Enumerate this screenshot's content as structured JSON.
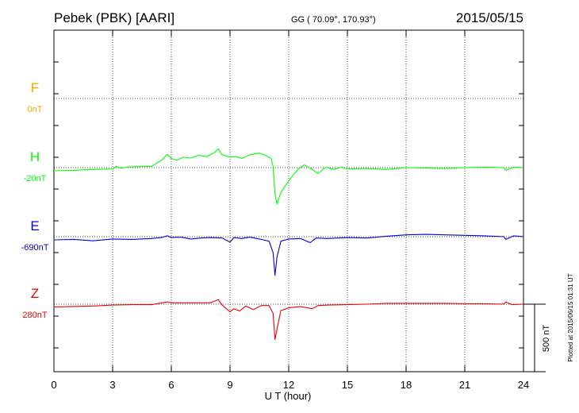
{
  "header": {
    "station": "Pebek (PBK)  [AARI]",
    "coords": "GG ( 70.09°, 170.93°)",
    "date": "2015/05/15"
  },
  "footer": {
    "plotted": "Plotted at 2015/06/15 01:31  UT"
  },
  "chart_data": {
    "type": "line",
    "title": "Pebek (PBK)  [AARI]",
    "xlabel": "U T (hour)",
    "ylabel": "",
    "xlim": [
      0,
      24
    ],
    "xticks": [
      0,
      3,
      6,
      9,
      12,
      15,
      18,
      21,
      24
    ],
    "grid": true,
    "scale_bar": "500 nT",
    "panel_span_nT": 1500,
    "series": [
      {
        "name": "F",
        "baseline_label": "0nT",
        "color": "#ffa500",
        "points": []
      },
      {
        "name": "H",
        "baseline_label": "-20nT",
        "color": "#00ff00",
        "points": [
          [
            0,
            -14
          ],
          [
            1,
            -12
          ],
          [
            2,
            -8
          ],
          [
            3,
            -6
          ],
          [
            3.2,
            6
          ],
          [
            3.4,
            -2
          ],
          [
            4,
            4
          ],
          [
            5,
            6
          ],
          [
            5.5,
            32
          ],
          [
            5.8,
            58
          ],
          [
            6,
            40
          ],
          [
            6.3,
            32
          ],
          [
            6.6,
            46
          ],
          [
            7,
            42
          ],
          [
            7.4,
            54
          ],
          [
            7.8,
            48
          ],
          [
            8.2,
            66
          ],
          [
            8.4,
            82
          ],
          [
            8.6,
            56
          ],
          [
            9,
            46
          ],
          [
            9.3,
            48
          ],
          [
            9.6,
            40
          ],
          [
            10,
            56
          ],
          [
            10.5,
            64
          ],
          [
            10.8,
            54
          ],
          [
            11.1,
            40
          ],
          [
            11.2,
            6
          ],
          [
            11.3,
            -116
          ],
          [
            11.4,
            -160
          ],
          [
            11.6,
            -110
          ],
          [
            11.9,
            -70
          ],
          [
            12.2,
            -36
          ],
          [
            12.5,
            -6
          ],
          [
            12.8,
            12
          ],
          [
            13.2,
            -8
          ],
          [
            13.5,
            -26
          ],
          [
            13.9,
            2
          ],
          [
            14.3,
            -8
          ],
          [
            14.7,
            2
          ],
          [
            15,
            -6
          ],
          [
            16,
            -4
          ],
          [
            17,
            -8
          ],
          [
            18,
            0
          ],
          [
            19,
            -2
          ],
          [
            20,
            -4
          ],
          [
            21,
            0
          ],
          [
            22,
            2
          ],
          [
            23,
            0
          ],
          [
            23.1,
            -12
          ],
          [
            23.5,
            2
          ],
          [
            24,
            0
          ]
        ]
      },
      {
        "name": "E",
        "baseline_label": "-690nT",
        "color": "#0000dd",
        "points": [
          [
            0,
            -14
          ],
          [
            1,
            -12
          ],
          [
            2,
            -18
          ],
          [
            3,
            -10
          ],
          [
            4,
            -12
          ],
          [
            5,
            -8
          ],
          [
            5.5,
            -4
          ],
          [
            5.8,
            4
          ],
          [
            6,
            -4
          ],
          [
            6.5,
            -2
          ],
          [
            7,
            -10
          ],
          [
            7.5,
            -6
          ],
          [
            8,
            -4
          ],
          [
            8.6,
            -6
          ],
          [
            9,
            -24
          ],
          [
            9.2,
            -4
          ],
          [
            9.6,
            -8
          ],
          [
            10,
            -2
          ],
          [
            10.5,
            -10
          ],
          [
            11,
            -20
          ],
          [
            11.2,
            -70
          ],
          [
            11.3,
            -170
          ],
          [
            11.4,
            -90
          ],
          [
            11.6,
            -20
          ],
          [
            12,
            -10
          ],
          [
            12.6,
            -8
          ],
          [
            13.1,
            -26
          ],
          [
            13.4,
            -6
          ],
          [
            14,
            -8
          ],
          [
            15,
            -4
          ],
          [
            16,
            -6
          ],
          [
            17,
            2
          ],
          [
            18,
            8
          ],
          [
            19,
            10
          ],
          [
            20,
            8
          ],
          [
            21,
            6
          ],
          [
            22,
            4
          ],
          [
            23,
            0
          ],
          [
            23.1,
            -12
          ],
          [
            23.5,
            4
          ],
          [
            24,
            0
          ]
        ]
      },
      {
        "name": "Z",
        "baseline_label": "280nT",
        "color": "#ee0000",
        "points": [
          [
            0,
            -12
          ],
          [
            1,
            -10
          ],
          [
            2,
            -8
          ],
          [
            3,
            -4
          ],
          [
            4,
            -2
          ],
          [
            5,
            -2
          ],
          [
            5.8,
            10
          ],
          [
            6,
            6
          ],
          [
            7,
            6
          ],
          [
            8,
            6
          ],
          [
            8.4,
            20
          ],
          [
            8.6,
            -4
          ],
          [
            9,
            -34
          ],
          [
            9.2,
            -20
          ],
          [
            9.5,
            -30
          ],
          [
            9.8,
            -8
          ],
          [
            10.2,
            -24
          ],
          [
            10.6,
            -6
          ],
          [
            11,
            -6
          ],
          [
            11.2,
            -40
          ],
          [
            11.3,
            -155
          ],
          [
            11.4,
            -110
          ],
          [
            11.6,
            -28
          ],
          [
            12,
            -16
          ],
          [
            12.6,
            -10
          ],
          [
            13.2,
            -20
          ],
          [
            13.5,
            -6
          ],
          [
            14,
            -4
          ],
          [
            15,
            -2
          ],
          [
            16,
            0
          ],
          [
            17,
            4
          ],
          [
            18,
            4
          ],
          [
            19,
            4
          ],
          [
            20,
            4
          ],
          [
            21,
            2
          ],
          [
            22,
            2
          ],
          [
            23,
            0
          ],
          [
            23.1,
            10
          ],
          [
            23.4,
            -2
          ],
          [
            24,
            0
          ]
        ]
      }
    ]
  }
}
